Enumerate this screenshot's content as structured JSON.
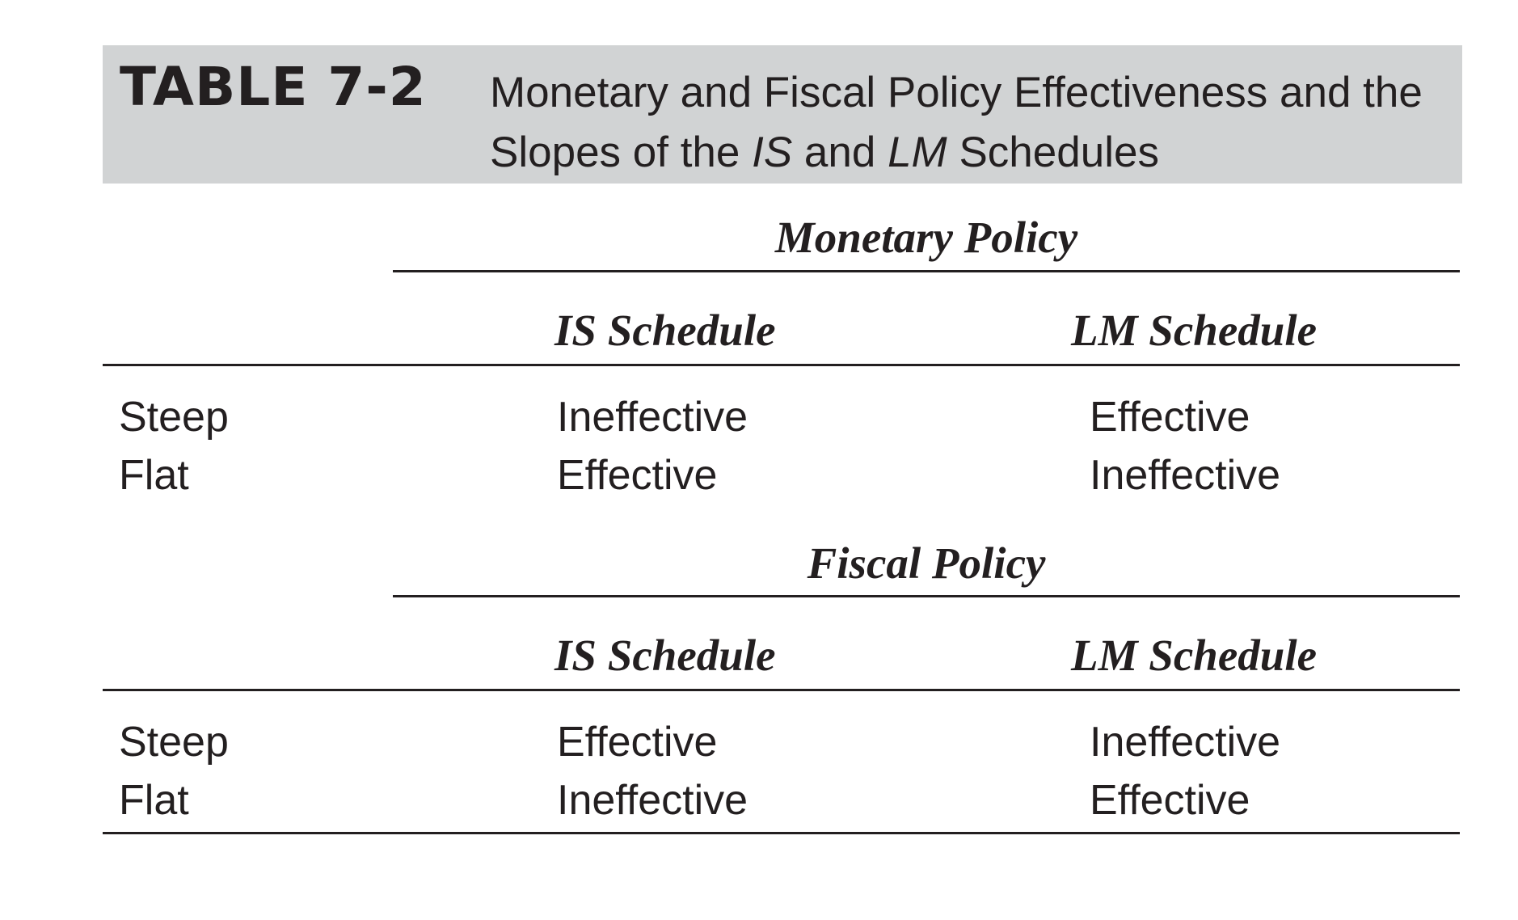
{
  "header": {
    "table_number": "TABLE 7-2",
    "title_line1": "Monetary and Fiscal Policy Effectiveness and the",
    "title_line2_prefix": "Slopes of the ",
    "title_is": "IS",
    "title_and": " and ",
    "title_lm": "LM",
    "title_suffix": " Schedules"
  },
  "sections": [
    {
      "title": "Monetary Policy",
      "col1": "IS Schedule",
      "col2": "LM Schedule",
      "rows": [
        {
          "label": "Steep",
          "is": "Ineffective",
          "lm": "Effective"
        },
        {
          "label": "Flat",
          "is": "Effective",
          "lm": "Ineffective"
        }
      ]
    },
    {
      "title": "Fiscal Policy",
      "col1": "IS Schedule",
      "col2": "LM Schedule",
      "rows": [
        {
          "label": "Steep",
          "is": "Effective",
          "lm": "Ineffective"
        },
        {
          "label": "Flat",
          "is": "Ineffective",
          "lm": "Effective"
        }
      ]
    }
  ]
}
